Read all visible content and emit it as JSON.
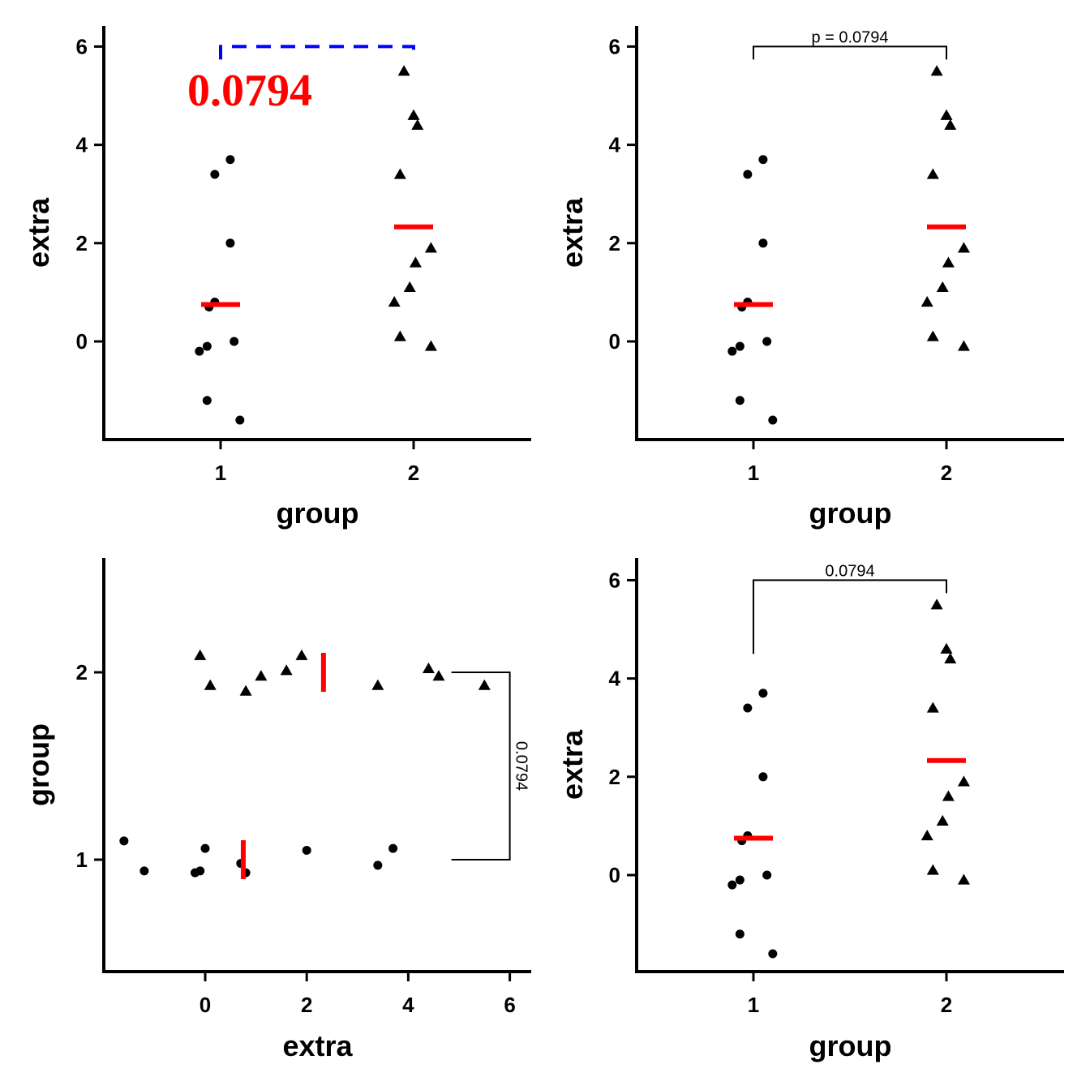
{
  "colors": {
    "points": "#000000",
    "summary": "#ff0000",
    "dashed_bracket": "#0000ff",
    "bracket": "#000000",
    "big_label": "#ff0000"
  },
  "chart_data": [
    {
      "type": "scatter",
      "panel": "top-left",
      "orientation": "vertical",
      "xlabel": "group",
      "ylabel": "extra",
      "categories": [
        "1",
        "2"
      ],
      "ylim": [
        -2.0,
        6.4
      ],
      "yticks": [
        "0",
        "2",
        "4",
        "6"
      ],
      "series": [
        {
          "category": "1",
          "marker": "circle",
          "points": [
            [
              0.94,
              0.7
            ],
            [
              0.93,
              -0.1
            ],
            [
              0.89,
              -0.2
            ],
            [
              0.93,
              -1.2
            ],
            [
              1.1,
              -1.6
            ],
            [
              0.97,
              3.4
            ],
            [
              1.05,
              3.7
            ],
            [
              1.07,
              0.0
            ],
            [
              0.97,
              0.8
            ],
            [
              1.05,
              2.0
            ]
          ],
          "mean": 0.75
        },
        {
          "category": "2",
          "marker": "triangle",
          "points": [
            [
              1.95,
              5.5
            ],
            [
              2.0,
              4.6
            ],
            [
              2.02,
              4.4
            ],
            [
              1.93,
              3.4
            ],
            [
              2.09,
              1.9
            ],
            [
              2.01,
              1.6
            ],
            [
              1.98,
              1.1
            ],
            [
              1.9,
              0.8
            ],
            [
              1.93,
              0.1
            ],
            [
              2.09,
              -0.1
            ]
          ],
          "mean": 2.33
        }
      ],
      "bracket": {
        "from": "1",
        "to": "2",
        "y": 6.0,
        "style": "dashed"
      },
      "annotation": "0.0794"
    },
    {
      "type": "scatter",
      "panel": "top-right",
      "orientation": "vertical",
      "xlabel": "group",
      "ylabel": "extra",
      "categories": [
        "1",
        "2"
      ],
      "ylim": [
        -2.0,
        6.4
      ],
      "yticks": [
        "0",
        "2",
        "4",
        "6"
      ],
      "series": [
        {
          "category": "1",
          "marker": "circle",
          "points": [
            [
              0.94,
              0.7
            ],
            [
              0.93,
              -0.1
            ],
            [
              0.89,
              -0.2
            ],
            [
              0.93,
              -1.2
            ],
            [
              1.1,
              -1.6
            ],
            [
              0.97,
              3.4
            ],
            [
              1.05,
              3.7
            ],
            [
              1.07,
              0.0
            ],
            [
              0.97,
              0.8
            ],
            [
              1.05,
              2.0
            ]
          ],
          "mean": 0.75
        },
        {
          "category": "2",
          "marker": "triangle",
          "points": [
            [
              1.95,
              5.5
            ],
            [
              2.0,
              4.6
            ],
            [
              2.02,
              4.4
            ],
            [
              1.93,
              3.4
            ],
            [
              2.09,
              1.9
            ],
            [
              2.01,
              1.6
            ],
            [
              1.98,
              1.1
            ],
            [
              1.9,
              0.8
            ],
            [
              1.93,
              0.1
            ],
            [
              2.09,
              -0.1
            ]
          ],
          "mean": 2.33
        }
      ],
      "bracket": {
        "from": "1",
        "to": "2",
        "y": 6.0,
        "style": "solid"
      },
      "annotation": "p = 0.0794"
    },
    {
      "type": "scatter",
      "panel": "bottom-left",
      "orientation": "horizontal",
      "xlabel": "extra",
      "ylabel": "group",
      "categories": [
        "1",
        "2"
      ],
      "xlim": [
        -2.0,
        6.4
      ],
      "xticks": [
        "0",
        "2",
        "4",
        "6"
      ],
      "series": [
        {
          "category": "1",
          "marker": "circle",
          "points": [
            [
              -1.6,
              1.1
            ],
            [
              -1.2,
              0.94
            ],
            [
              -0.2,
              0.93
            ],
            [
              -0.1,
              0.94
            ],
            [
              0.0,
              1.06
            ],
            [
              0.7,
              0.98
            ],
            [
              0.8,
              0.93
            ],
            [
              2.0,
              1.05
            ],
            [
              3.4,
              0.97
            ],
            [
              3.7,
              1.06
            ]
          ],
          "mean": 0.75
        },
        {
          "category": "2",
          "marker": "triangle",
          "points": [
            [
              -0.1,
              2.09
            ],
            [
              0.1,
              1.93
            ],
            [
              0.8,
              1.9
            ],
            [
              1.1,
              1.98
            ],
            [
              1.6,
              2.01
            ],
            [
              1.9,
              2.09
            ],
            [
              3.4,
              1.93
            ],
            [
              4.4,
              2.02
            ],
            [
              4.6,
              1.98
            ],
            [
              5.5,
              1.93
            ]
          ],
          "mean": 2.33
        }
      ],
      "bracket": {
        "from": "1",
        "to": "2",
        "x": 6.0,
        "style": "solid"
      },
      "annotation": "0.0794"
    },
    {
      "type": "scatter",
      "panel": "bottom-right",
      "orientation": "vertical",
      "xlabel": "group",
      "ylabel": "extra",
      "categories": [
        "1",
        "2"
      ],
      "ylim": [
        -2.0,
        6.4
      ],
      "yticks": [
        "0",
        "2",
        "4",
        "6"
      ],
      "series": [
        {
          "category": "1",
          "marker": "circle",
          "points": [
            [
              0.94,
              0.7
            ],
            [
              0.93,
              -0.1
            ],
            [
              0.89,
              -0.2
            ],
            [
              0.93,
              -1.2
            ],
            [
              1.1,
              -1.6
            ],
            [
              0.97,
              3.4
            ],
            [
              1.05,
              3.7
            ],
            [
              1.07,
              0.0
            ],
            [
              0.97,
              0.8
            ],
            [
              1.05,
              2.0
            ]
          ],
          "mean": 0.75
        },
        {
          "category": "2",
          "marker": "triangle",
          "points": [
            [
              1.95,
              5.5
            ],
            [
              2.0,
              4.6
            ],
            [
              2.02,
              4.4
            ],
            [
              1.93,
              3.4
            ],
            [
              2.09,
              1.9
            ],
            [
              2.01,
              1.6
            ],
            [
              1.98,
              1.1
            ],
            [
              1.9,
              0.8
            ],
            [
              1.93,
              0.1
            ],
            [
              2.09,
              -0.1
            ]
          ],
          "mean": 2.33
        }
      ],
      "bracket": {
        "from": "1",
        "to": "2",
        "y": 6.0,
        "style": "solid",
        "left_drop_to": 4.5
      },
      "annotation": "0.0794"
    }
  ]
}
